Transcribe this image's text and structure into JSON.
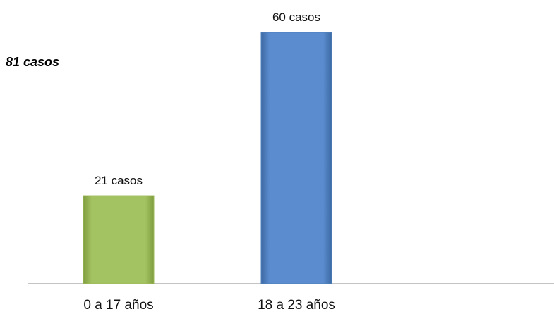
{
  "total_label": "81 casos",
  "chart_data": {
    "type": "bar",
    "categories": [
      "0 a 17 años",
      "18 a 23 años"
    ],
    "values": [
      21,
      60
    ],
    "data_labels": [
      "21 casos",
      "60 casos"
    ],
    "colors": [
      "#9bbb59",
      "#4f81bd"
    ],
    "ylim": [
      0,
      60
    ],
    "grid": false,
    "legend": "none",
    "title": "",
    "xlabel": "",
    "ylabel": ""
  }
}
